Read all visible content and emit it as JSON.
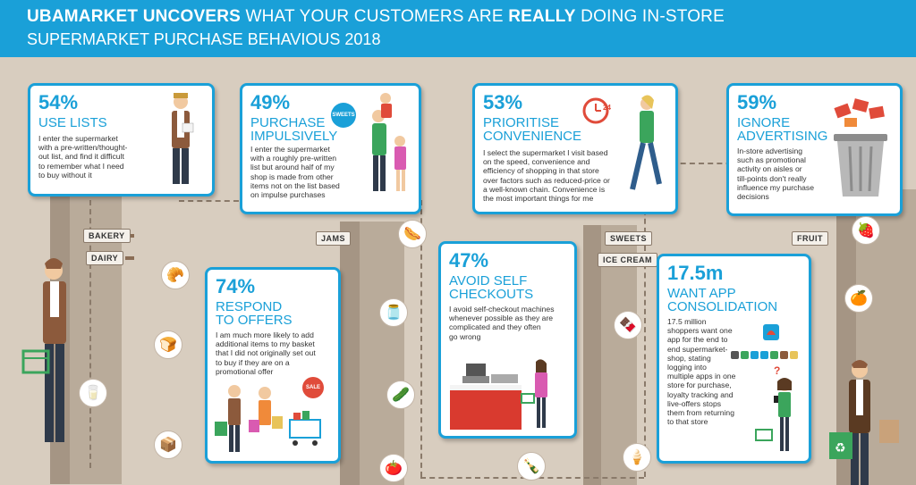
{
  "header": {
    "line1_bold": "UBAMARKET UNCOVERS",
    "line1_mid": "WHAT YOUR CUSTOMERS ARE",
    "line1_bold2": "REALLY",
    "line1_end": "DOING IN-STORE",
    "line2": "SUPERMARKET PURCHASE BEHAVIOUS 2018"
  },
  "signs": {
    "bakery": "BAKERY",
    "dairy": "DAIRY",
    "jams": "JAMS",
    "sweets": "SWEETS",
    "ice_cream": "ICE CREAM",
    "fruit": "FRUIT",
    "sweets_badge": "SWEETS",
    "sale_badge": "SALE"
  },
  "cards": {
    "lists": {
      "pct": "54%",
      "title1": "USE LISTS",
      "body": [
        "I enter the supermarket",
        "with a pre-written/thought-",
        "out list, and find it difficult",
        "to remember what I need",
        "to buy without it"
      ]
    },
    "impulse": {
      "pct": "49%",
      "title1": "PURCHASE",
      "title2": "IMPULSIVELY",
      "body": [
        "I enter the supermarket",
        "with a roughly pre-written",
        "list but around half of my",
        "shop is made from other",
        "items not on the list based",
        "on impulse purchases"
      ]
    },
    "convenience": {
      "pct": "53%",
      "title1": "PRIORITISE",
      "title2": "CONVENIENCE",
      "clock_label": "24",
      "body": [
        "I select the supermarket I visit based",
        "on the speed, convenience and",
        "efficiency of shopping in that store",
        "over factors such as reduced-price or",
        "a well-known chain. Convenience is",
        "the most important things for me"
      ]
    },
    "advertising": {
      "pct": "59%",
      "title1": "IGNORE",
      "title2": "ADVERTISING",
      "body": [
        "In-store advertising",
        "such as promotional",
        "activity on aisles or",
        "till-points don't really",
        "influence my purchase",
        "decisions"
      ]
    },
    "offers": {
      "pct": "74%",
      "title1": "RESPOND",
      "title2": "TO OFFERS",
      "body": [
        "I am much more likely to add",
        "additional items to my basket",
        "that I did not originally set out",
        "to buy if they are on a",
        "promotional offer"
      ]
    },
    "checkouts": {
      "pct": "47%",
      "title1": "AVOID SELF",
      "title2": "CHECKOUTS",
      "body": [
        "I avoid self-checkout machines",
        "whenever possible as they are",
        "complicated and they often",
        "go wrong"
      ]
    },
    "app": {
      "pct": "17.5m",
      "title1": "WANT APP",
      "title2": "CONSOLIDATION",
      "body": [
        "17.5 million",
        "shoppers want one",
        "app for the end to",
        "end supermarket-",
        "shop, stating",
        "logging into",
        "multiple apps in one",
        "store for purchase,",
        "loyalty tracking and",
        "live-offers stops",
        "them from returning",
        "to that store"
      ]
    }
  },
  "icons": {
    "circle1": "croissant-icon",
    "circle2": "bread-icon",
    "circle3": "milk-icon",
    "circle4": "cereal-icon",
    "circle5": "sausage-icon",
    "circle6": "jam-jar-icon",
    "circle7": "pickle-jar-icon",
    "circle8": "sauce-jar-icon",
    "circle9": "oil-bottle-icon",
    "circle10": "candy-bar-icon",
    "circle11": "ice-cream-tub-icon",
    "circle12": "strawberry-icon",
    "circle13": "orange-icon"
  },
  "colors": {
    "accent": "#1aa0d8",
    "floor": "#d8cdbf",
    "aisle": "#b9ab9a"
  }
}
